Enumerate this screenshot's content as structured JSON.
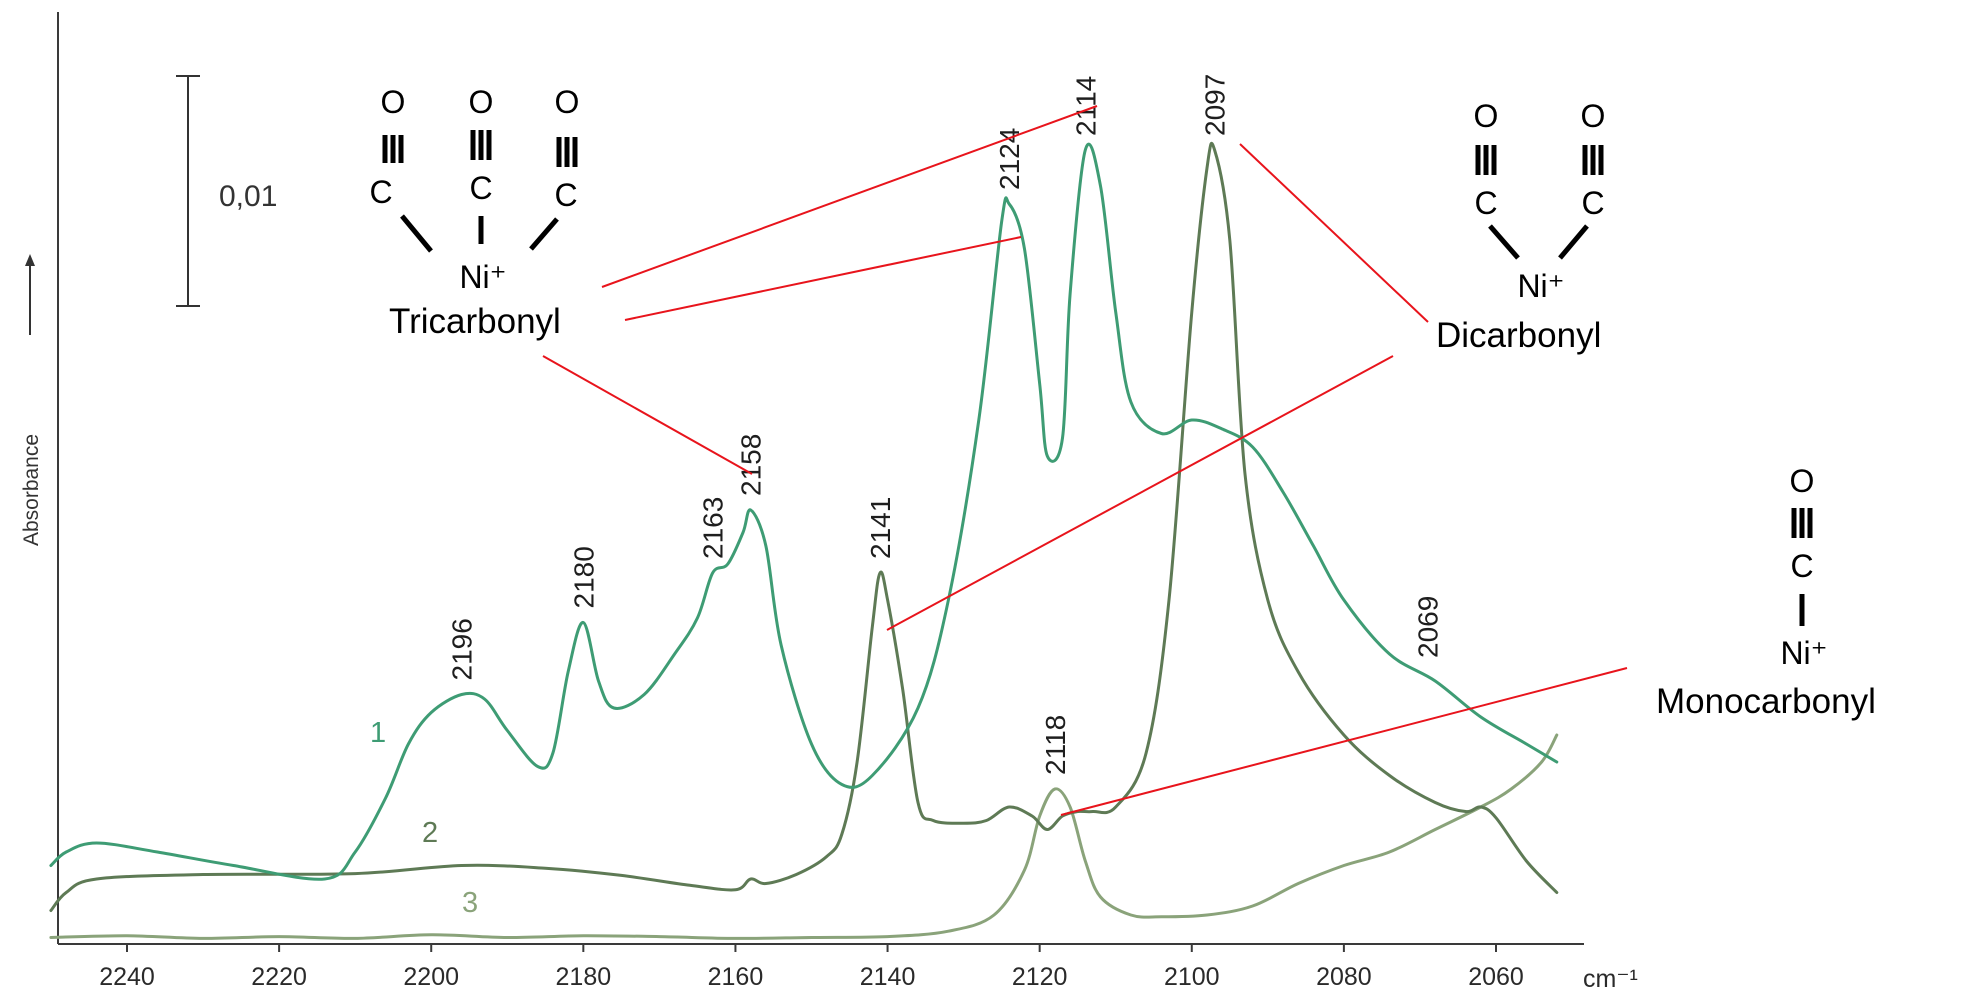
{
  "chart_data": {
    "type": "line",
    "xlabel": "cm⁻¹",
    "ylabel": "Absorbance",
    "x_reversed": true,
    "xlim": [
      2250,
      2050
    ],
    "ylim": [
      0,
      1
    ],
    "x_ticks": [
      2240,
      2220,
      2200,
      2180,
      2160,
      2140,
      2120,
      2100,
      2080,
      2060
    ],
    "grid": false,
    "scale_bar_label": "0,01",
    "series": [
      {
        "name": "1",
        "color": "#3e9c74",
        "points": [
          [
            2250,
            0.085
          ],
          [
            2248,
            0.1
          ],
          [
            2244,
            0.11
          ],
          [
            2236,
            0.1
          ],
          [
            2226,
            0.085
          ],
          [
            2214,
            0.07
          ],
          [
            2210,
            0.1
          ],
          [
            2206,
            0.16
          ],
          [
            2203,
            0.22
          ],
          [
            2200,
            0.255
          ],
          [
            2196,
            0.275
          ],
          [
            2193,
            0.27
          ],
          [
            2190,
            0.235
          ],
          [
            2186,
            0.195
          ],
          [
            2184,
            0.21
          ],
          [
            2182,
            0.3
          ],
          [
            2180,
            0.355
          ],
          [
            2178,
            0.29
          ],
          [
            2176,
            0.26
          ],
          [
            2172,
            0.275
          ],
          [
            2168,
            0.32
          ],
          [
            2165,
            0.36
          ],
          [
            2163,
            0.41
          ],
          [
            2161,
            0.42
          ],
          [
            2159,
            0.455
          ],
          [
            2158,
            0.48
          ],
          [
            2156,
            0.44
          ],
          [
            2154,
            0.33
          ],
          [
            2150,
            0.22
          ],
          [
            2146,
            0.175
          ],
          [
            2142,
            0.185
          ],
          [
            2136,
            0.26
          ],
          [
            2132,
            0.38
          ],
          [
            2128,
            0.58
          ],
          [
            2125,
            0.8
          ],
          [
            2124,
            0.82
          ],
          [
            2122,
            0.77
          ],
          [
            2120,
            0.62
          ],
          [
            2119,
            0.54
          ],
          [
            2117,
            0.56
          ],
          [
            2116,
            0.72
          ],
          [
            2114,
            0.88
          ],
          [
            2112,
            0.84
          ],
          [
            2110,
            0.7
          ],
          [
            2108,
            0.6
          ],
          [
            2104,
            0.565
          ],
          [
            2100,
            0.58
          ],
          [
            2096,
            0.57
          ],
          [
            2092,
            0.55
          ],
          [
            2088,
            0.5
          ],
          [
            2084,
            0.44
          ],
          [
            2080,
            0.38
          ],
          [
            2074,
            0.32
          ],
          [
            2068,
            0.29
          ],
          [
            2062,
            0.25
          ],
          [
            2056,
            0.22
          ],
          [
            2052,
            0.2
          ]
        ]
      },
      {
        "name": "2",
        "color": "#5e7a55",
        "points": [
          [
            2250,
            0.035
          ],
          [
            2248,
            0.055
          ],
          [
            2244,
            0.07
          ],
          [
            2230,
            0.075
          ],
          [
            2210,
            0.076
          ],
          [
            2196,
            0.085
          ],
          [
            2185,
            0.082
          ],
          [
            2175,
            0.074
          ],
          [
            2166,
            0.063
          ],
          [
            2160,
            0.058
          ],
          [
            2158,
            0.07
          ],
          [
            2156,
            0.065
          ],
          [
            2152,
            0.075
          ],
          [
            2148,
            0.095
          ],
          [
            2146,
            0.12
          ],
          [
            2144,
            0.2
          ],
          [
            2142,
            0.35
          ],
          [
            2141,
            0.41
          ],
          [
            2140,
            0.38
          ],
          [
            2138,
            0.28
          ],
          [
            2136,
            0.155
          ],
          [
            2134,
            0.135
          ],
          [
            2130,
            0.132
          ],
          [
            2127,
            0.135
          ],
          [
            2124,
            0.15
          ],
          [
            2121,
            0.14
          ],
          [
            2119,
            0.125
          ],
          [
            2117,
            0.14
          ],
          [
            2115,
            0.145
          ],
          [
            2113,
            0.145
          ],
          [
            2110,
            0.15
          ],
          [
            2106,
            0.21
          ],
          [
            2103,
            0.38
          ],
          [
            2100,
            0.7
          ],
          [
            2098,
            0.86
          ],
          [
            2097,
            0.88
          ],
          [
            2095,
            0.78
          ],
          [
            2093,
            0.52
          ],
          [
            2090,
            0.38
          ],
          [
            2086,
            0.3
          ],
          [
            2080,
            0.23
          ],
          [
            2074,
            0.185
          ],
          [
            2068,
            0.155
          ],
          [
            2064,
            0.145
          ],
          [
            2062,
            0.15
          ],
          [
            2060,
            0.138
          ],
          [
            2056,
            0.09
          ],
          [
            2052,
            0.055
          ]
        ]
      },
      {
        "name": "3",
        "color": "#8aa37a",
        "points": [
          [
            2250,
            0.005
          ],
          [
            2240,
            0.007
          ],
          [
            2230,
            0.004
          ],
          [
            2220,
            0.006
          ],
          [
            2210,
            0.004
          ],
          [
            2200,
            0.008
          ],
          [
            2190,
            0.005
          ],
          [
            2180,
            0.007
          ],
          [
            2170,
            0.006
          ],
          [
            2160,
            0.004
          ],
          [
            2150,
            0.005
          ],
          [
            2140,
            0.006
          ],
          [
            2132,
            0.012
          ],
          [
            2126,
            0.03
          ],
          [
            2122,
            0.08
          ],
          [
            2120,
            0.14
          ],
          [
            2118,
            0.17
          ],
          [
            2116,
            0.15
          ],
          [
            2114,
            0.09
          ],
          [
            2112,
            0.05
          ],
          [
            2108,
            0.03
          ],
          [
            2104,
            0.028
          ],
          [
            2098,
            0.03
          ],
          [
            2092,
            0.04
          ],
          [
            2086,
            0.065
          ],
          [
            2080,
            0.085
          ],
          [
            2074,
            0.1
          ],
          [
            2068,
            0.125
          ],
          [
            2062,
            0.15
          ],
          [
            2058,
            0.17
          ],
          [
            2054,
            0.2
          ],
          [
            2052,
            0.23
          ]
        ]
      }
    ],
    "peak_labels": [
      {
        "text": "2196",
        "x": 2196,
        "y": 0.275
      },
      {
        "text": "2180",
        "x": 2180,
        "y": 0.355
      },
      {
        "text": "2163",
        "x": 2163,
        "y": 0.41
      },
      {
        "text": "2158",
        "x": 2158,
        "y": 0.48
      },
      {
        "text": "2141",
        "x": 2141,
        "y": 0.41
      },
      {
        "text": "2124",
        "x": 2124,
        "y": 0.82
      },
      {
        "text": "2114",
        "x": 2114,
        "y": 0.88
      },
      {
        "text": "2118",
        "x": 2118,
        "y": 0.17
      },
      {
        "text": "2097",
        "x": 2097,
        "y": 0.88
      },
      {
        "text": "2069",
        "x": 2069,
        "y": 0.3
      }
    ]
  },
  "annotations": {
    "tricarbonyl": {
      "o": "O",
      "c": "C",
      "ni": "Ni⁺",
      "name": "Tricarbonyl"
    },
    "dicarbonyl": {
      "o": "O",
      "c": "C",
      "ni": "Ni⁺",
      "name": "Dicarbonyl"
    },
    "monocarbonyl": {
      "o": "O",
      "c": "C",
      "ni": "Ni⁺",
      "name": "Monocarbonyl"
    },
    "leader_color": "#e8141c"
  }
}
